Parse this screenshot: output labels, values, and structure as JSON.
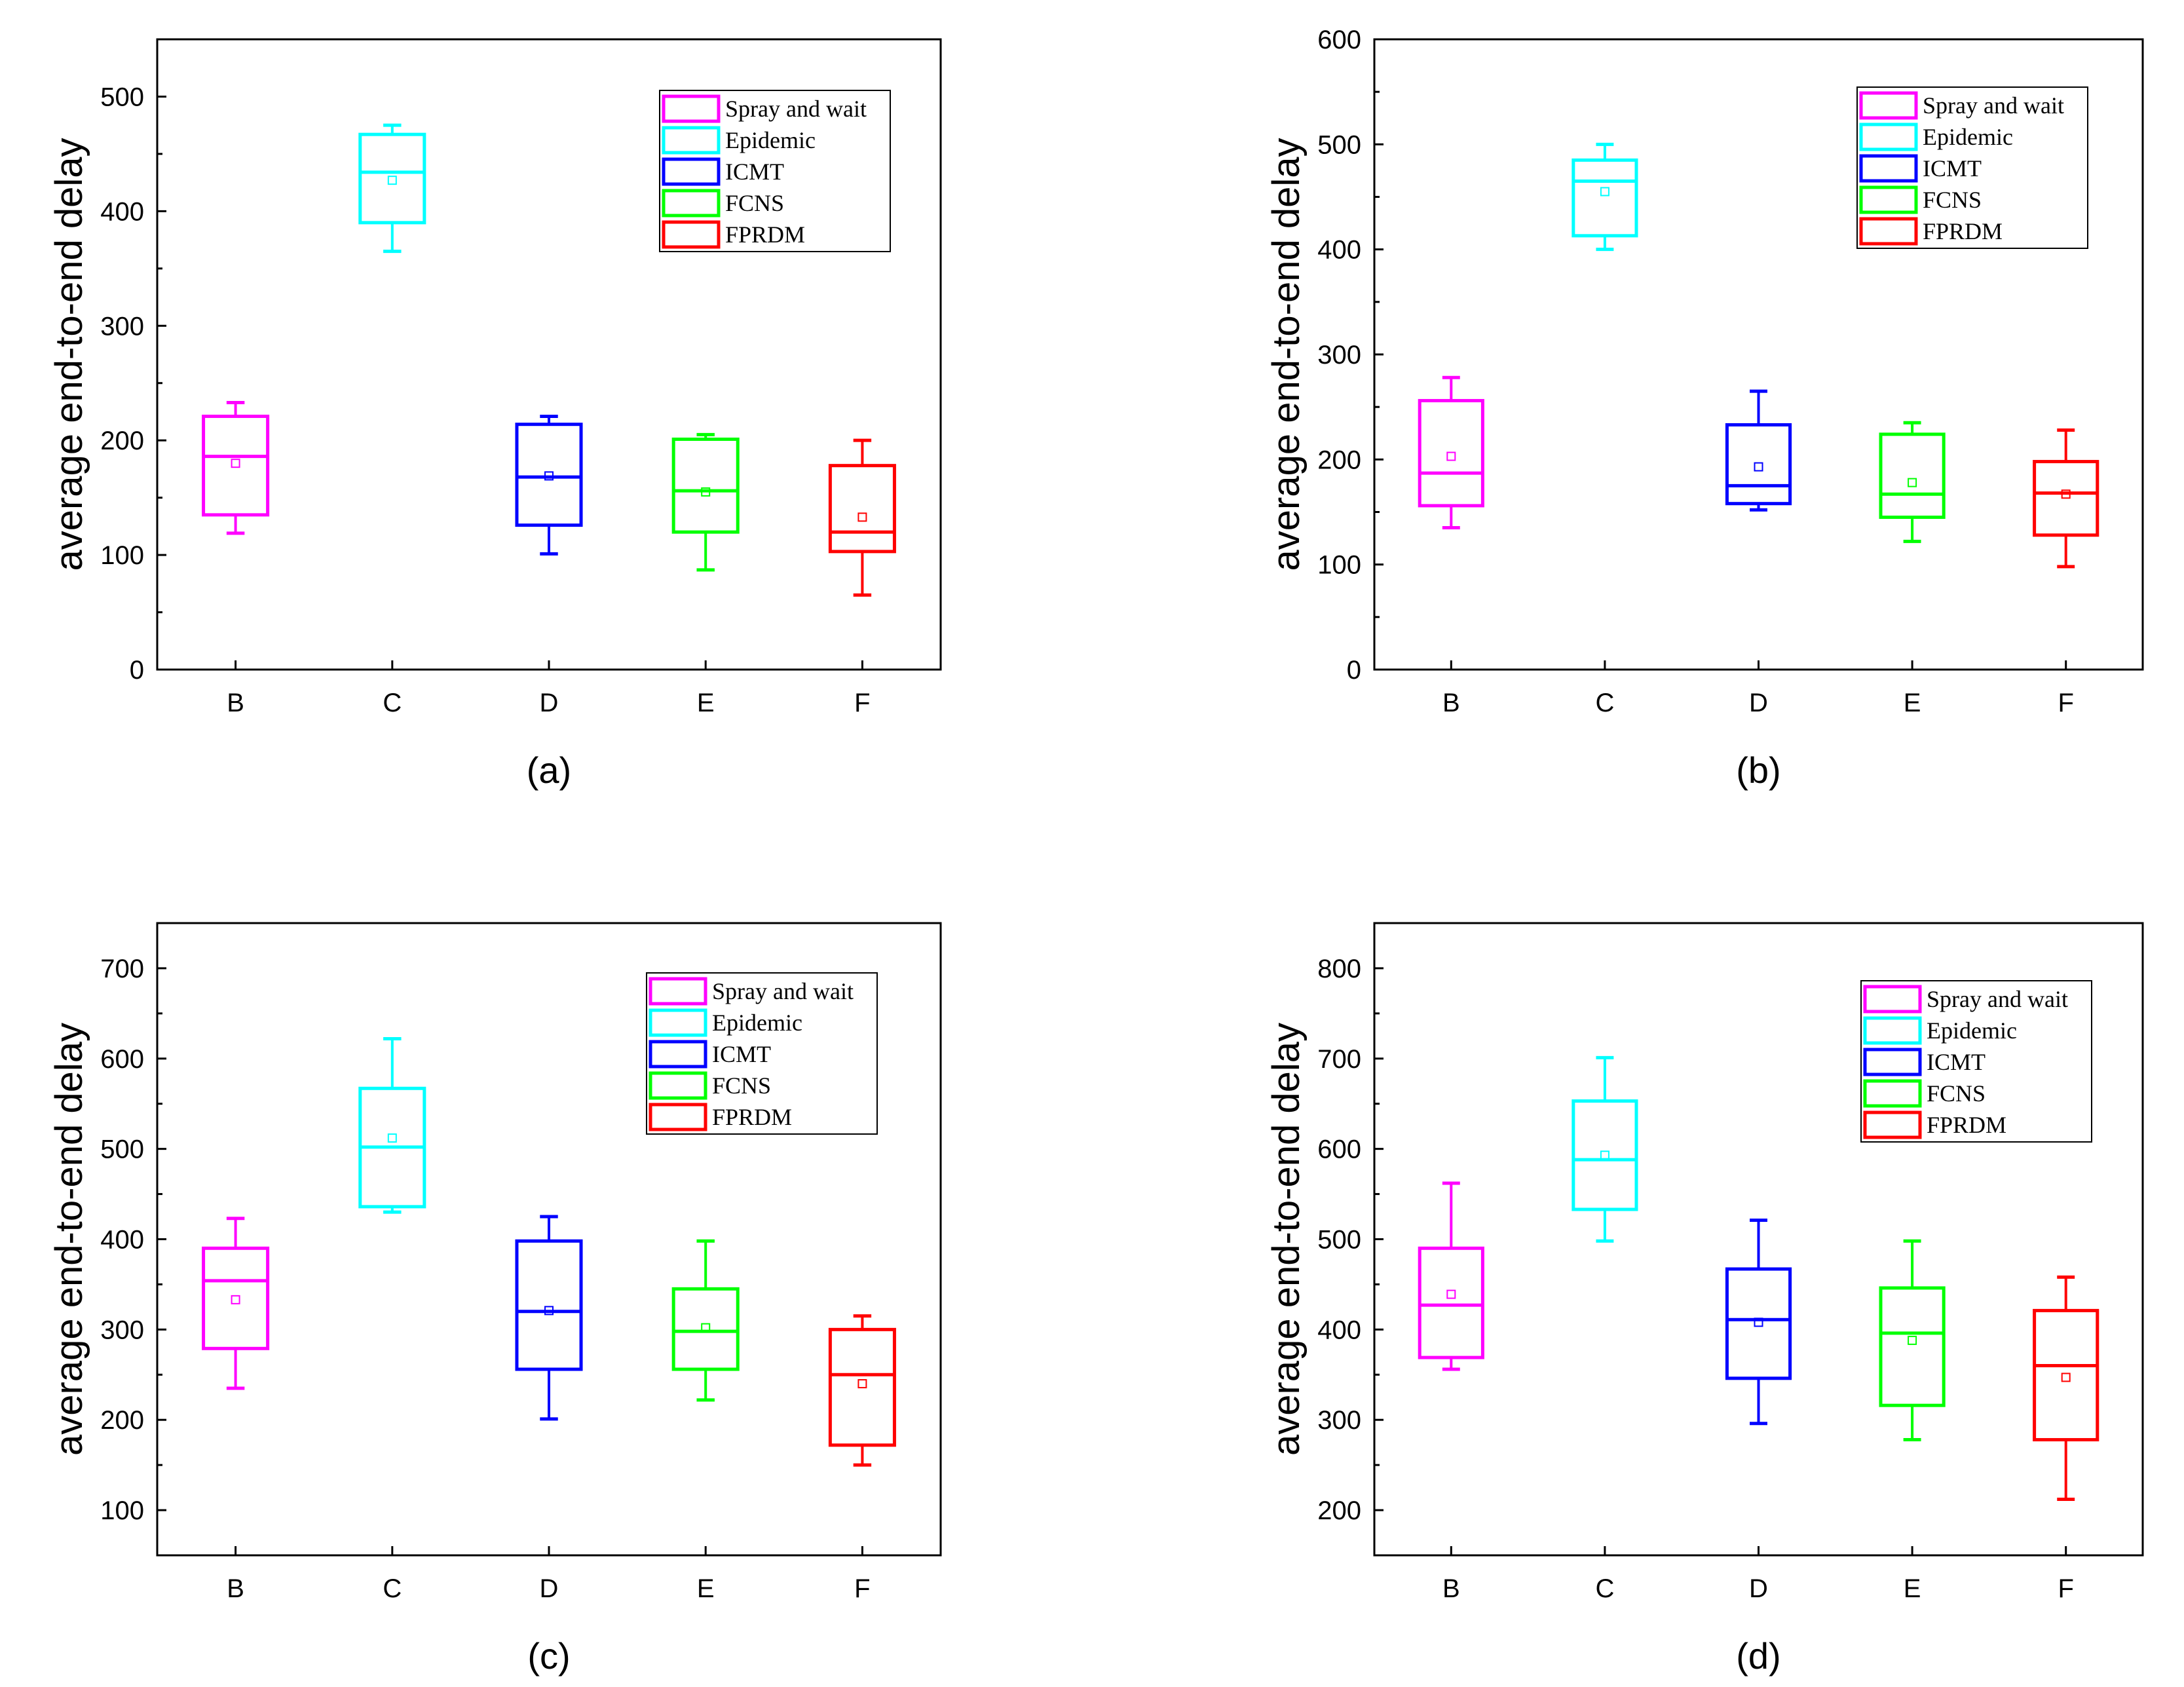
{
  "chart_data": [
    {
      "type": "box",
      "panel_label": "(a)",
      "ylabel": "average end-to-end delay",
      "xlabel": "",
      "categories": [
        "B",
        "C",
        "D",
        "E",
        "F"
      ],
      "ylim": [
        0,
        550
      ],
      "yticks": [
        0,
        100,
        200,
        300,
        400,
        500
      ],
      "legend_position": "top-right",
      "series": [
        {
          "name": "Spray and wait",
          "color": "#ff00ff",
          "category": "B",
          "whisker_low": 119,
          "q1": 135,
          "median": 186,
          "q3": 221,
          "whisker_high": 233,
          "mean": 180
        },
        {
          "name": "Epidemic",
          "color": "#00ffff",
          "category": "C",
          "whisker_low": 365,
          "q1": 390,
          "median": 434,
          "q3": 467,
          "whisker_high": 475,
          "mean": 427
        },
        {
          "name": "ICMT",
          "color": "#0000ff",
          "category": "D",
          "whisker_low": 101,
          "q1": 126,
          "median": 168,
          "q3": 214,
          "whisker_high": 221,
          "mean": 169
        },
        {
          "name": "FCNS",
          "color": "#00ff00",
          "category": "E",
          "whisker_low": 87,
          "q1": 120,
          "median": 156,
          "q3": 201,
          "whisker_high": 205,
          "mean": 155
        },
        {
          "name": "FPRDM",
          "color": "#ff0000",
          "category": "F",
          "whisker_low": 65,
          "q1": 103,
          "median": 120,
          "q3": 178,
          "whisker_high": 200,
          "mean": 133
        }
      ]
    },
    {
      "type": "box",
      "panel_label": "(b)",
      "ylabel": "average end-to-end delay",
      "xlabel": "",
      "categories": [
        "B",
        "C",
        "D",
        "E",
        "F"
      ],
      "ylim": [
        0,
        600
      ],
      "yticks": [
        0,
        100,
        200,
        300,
        400,
        500,
        600
      ],
      "legend_position": "top-right",
      "series": [
        {
          "name": "Spray and wait",
          "color": "#ff00ff",
          "category": "B",
          "whisker_low": 135,
          "q1": 156,
          "median": 187,
          "q3": 256,
          "whisker_high": 278,
          "mean": 203
        },
        {
          "name": "Epidemic",
          "color": "#00ffff",
          "category": "C",
          "whisker_low": 400,
          "q1": 413,
          "median": 465,
          "q3": 485,
          "whisker_high": 500,
          "mean": 455
        },
        {
          "name": "ICMT",
          "color": "#0000ff",
          "category": "D",
          "whisker_low": 152,
          "q1": 158,
          "median": 175,
          "q3": 233,
          "whisker_high": 265,
          "mean": 193
        },
        {
          "name": "FCNS",
          "color": "#00ff00",
          "category": "E",
          "whisker_low": 122,
          "q1": 145,
          "median": 167,
          "q3": 224,
          "whisker_high": 235,
          "mean": 178
        },
        {
          "name": "FPRDM",
          "color": "#ff0000",
          "category": "F",
          "whisker_low": 98,
          "q1": 128,
          "median": 168,
          "q3": 198,
          "whisker_high": 228,
          "mean": 167
        }
      ]
    },
    {
      "type": "box",
      "panel_label": "(c)",
      "ylabel": "average end-to-end delay",
      "xlabel": "",
      "categories": [
        "B",
        "C",
        "D",
        "E",
        "F"
      ],
      "ylim": [
        50,
        750
      ],
      "yticks": [
        100,
        200,
        300,
        400,
        500,
        600,
        700
      ],
      "legend_position": "top-right",
      "series": [
        {
          "name": "Spray and wait",
          "color": "#ff00ff",
          "category": "B",
          "whisker_low": 235,
          "q1": 279,
          "median": 354,
          "q3": 390,
          "whisker_high": 423,
          "mean": 333
        },
        {
          "name": "Epidemic",
          "color": "#00ffff",
          "category": "C",
          "whisker_low": 430,
          "q1": 436,
          "median": 502,
          "q3": 567,
          "whisker_high": 622,
          "mean": 512
        },
        {
          "name": "ICMT",
          "color": "#0000ff",
          "category": "D",
          "whisker_low": 201,
          "q1": 256,
          "median": 320,
          "q3": 398,
          "whisker_high": 425,
          "mean": 321
        },
        {
          "name": "FCNS",
          "color": "#00ff00",
          "category": "E",
          "whisker_low": 222,
          "q1": 256,
          "median": 298,
          "q3": 345,
          "whisker_high": 398,
          "mean": 302
        },
        {
          "name": "FPRDM",
          "color": "#ff0000",
          "category": "F",
          "whisker_low": 150,
          "q1": 172,
          "median": 250,
          "q3": 300,
          "whisker_high": 315,
          "mean": 240
        }
      ]
    },
    {
      "type": "box",
      "panel_label": "(d)",
      "ylabel": "average end-to-end delay",
      "xlabel": "",
      "categories": [
        "B",
        "C",
        "D",
        "E",
        "F"
      ],
      "ylim": [
        150,
        850
      ],
      "yticks": [
        200,
        300,
        400,
        500,
        600,
        700,
        800
      ],
      "legend_position": "top-right",
      "series": [
        {
          "name": "Spray and wait",
          "color": "#ff00ff",
          "category": "B",
          "whisker_low": 356,
          "q1": 369,
          "median": 427,
          "q3": 490,
          "whisker_high": 562,
          "mean": 439
        },
        {
          "name": "Epidemic",
          "color": "#00ffff",
          "category": "C",
          "whisker_low": 498,
          "q1": 533,
          "median": 588,
          "q3": 653,
          "whisker_high": 701,
          "mean": 593
        },
        {
          "name": "ICMT",
          "color": "#0000ff",
          "category": "D",
          "whisker_low": 296,
          "q1": 346,
          "median": 411,
          "q3": 467,
          "whisker_high": 521,
          "mean": 408
        },
        {
          "name": "FCNS",
          "color": "#00ff00",
          "category": "E",
          "whisker_low": 278,
          "q1": 316,
          "median": 396,
          "q3": 446,
          "whisker_high": 498,
          "mean": 388
        },
        {
          "name": "FPRDM",
          "color": "#ff0000",
          "category": "F",
          "whisker_low": 212,
          "q1": 278,
          "median": 360,
          "q3": 421,
          "whisker_high": 458,
          "mean": 347
        }
      ]
    }
  ]
}
